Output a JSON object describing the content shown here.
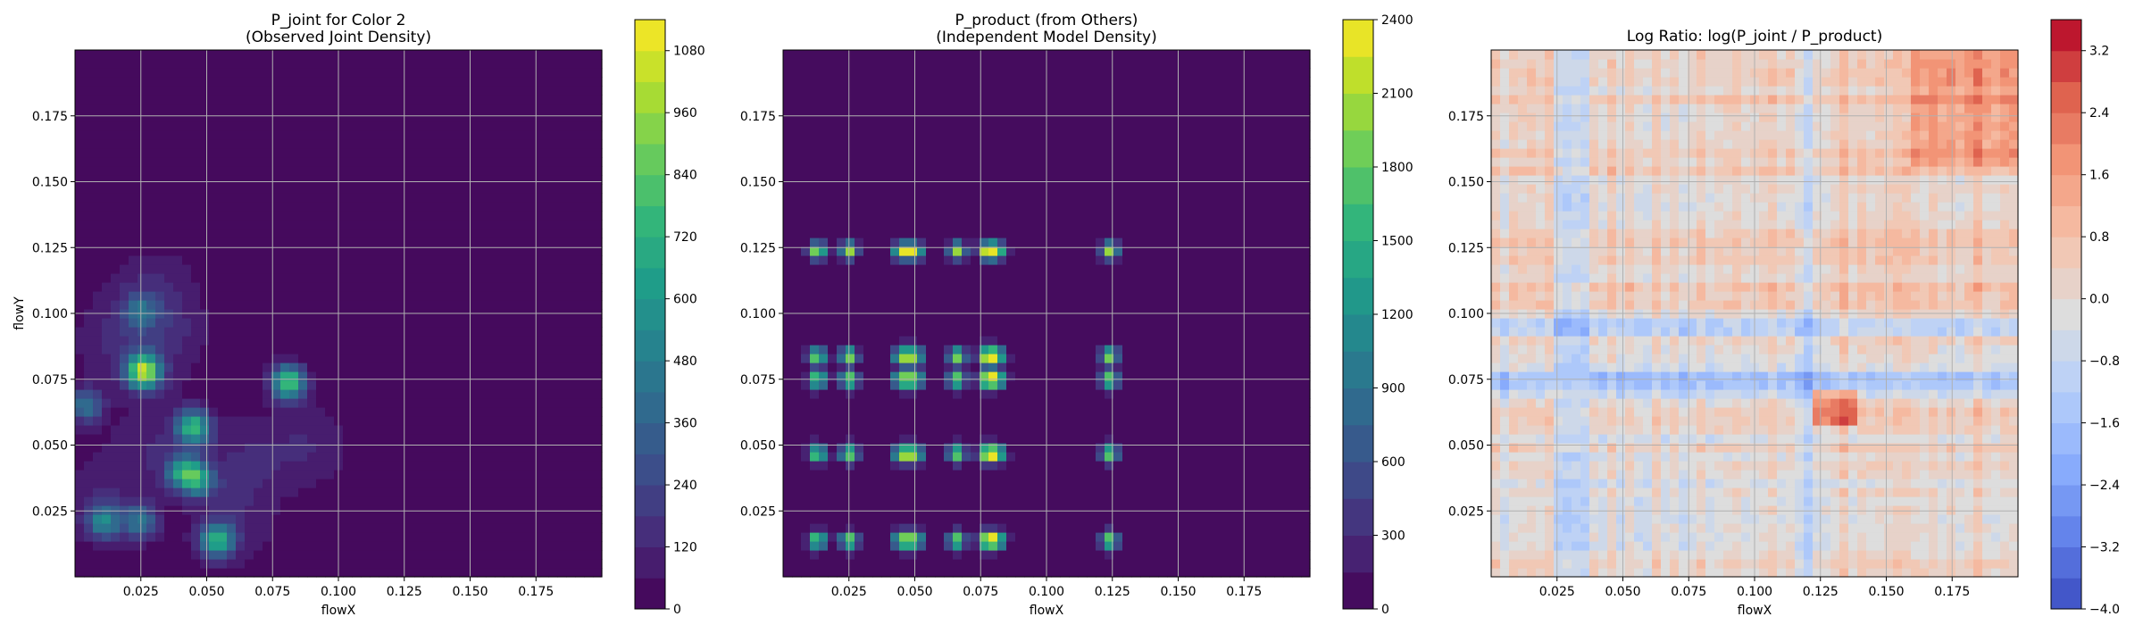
{
  "chart_data": [
    {
      "type": "heatmap",
      "title_lines": [
        "P_joint for Color 2",
        "(Observed Joint Density)"
      ],
      "xlabel": "flowX",
      "ylabel": "flowY",
      "xlim": [
        0.0,
        0.2
      ],
      "ylim": [
        0.0,
        0.2
      ],
      "xticks": [
        "0.025",
        "0.050",
        "0.075",
        "0.100",
        "0.125",
        "0.150",
        "0.175"
      ],
      "yticks": [
        "0.025",
        "0.050",
        "0.075",
        "0.100",
        "0.125",
        "0.150",
        "0.175"
      ],
      "grid": true,
      "colormap": "viridis",
      "colorbar": {
        "min": 0,
        "max": 1140,
        "ticks": [
          "0",
          "120",
          "240",
          "360",
          "480",
          "600",
          "720",
          "840",
          "960",
          "1080"
        ],
        "levels": 19
      },
      "hotspots": [
        {
          "x": 0.026,
          "y": 0.078,
          "density": 1000
        },
        {
          "x": 0.081,
          "y": 0.074,
          "density": 820
        },
        {
          "x": 0.045,
          "y": 0.057,
          "density": 720
        },
        {
          "x": 0.054,
          "y": 0.014,
          "density": 650
        },
        {
          "x": 0.041,
          "y": 0.04,
          "density": 560
        },
        {
          "x": 0.047,
          "y": 0.037,
          "density": 520
        },
        {
          "x": 0.011,
          "y": 0.021,
          "density": 470
        },
        {
          "x": 0.025,
          "y": 0.021,
          "density": 430
        },
        {
          "x": 0.004,
          "y": 0.065,
          "density": 420
        },
        {
          "x": 0.025,
          "y": 0.101,
          "density": 300
        }
      ]
    },
    {
      "type": "heatmap",
      "title_lines": [
        "P_product (from Others)",
        "(Independent Model Density)"
      ],
      "xlabel": "flowX",
      "ylabel": "",
      "xlim": [
        0.0,
        0.2
      ],
      "ylim": [
        0.0,
        0.2
      ],
      "xticks": [
        "0.025",
        "0.050",
        "0.075",
        "0.100",
        "0.125",
        "0.150",
        "0.175"
      ],
      "yticks": [
        "0.025",
        "0.050",
        "0.075",
        "0.100",
        "0.125",
        "0.150",
        "0.175"
      ],
      "grid": true,
      "colormap": "viridis",
      "colorbar": {
        "min": 0,
        "max": 2400,
        "ticks": [
          "0",
          "300",
          "600",
          "900",
          "1200",
          "1500",
          "1800",
          "2100",
          "2400"
        ],
        "levels": 16
      },
      "x_bands": [
        0.013,
        0.025,
        0.045,
        0.05,
        0.066,
        0.077,
        0.081,
        0.124
      ],
      "y_bands": [
        0.014,
        0.047,
        0.075,
        0.084,
        0.124
      ],
      "peak": {
        "x": 0.013,
        "y": 0.014,
        "density": 2200
      }
    },
    {
      "type": "heatmap",
      "title_lines": [
        "Log Ratio: log(P_joint / P_product)"
      ],
      "xlabel": "flowX",
      "ylabel": "",
      "xlim": [
        0.0,
        0.2
      ],
      "ylim": [
        0.0,
        0.2
      ],
      "xticks": [
        "0.025",
        "0.050",
        "0.075",
        "0.100",
        "0.125",
        "0.150",
        "0.175"
      ],
      "yticks": [
        "0.025",
        "0.050",
        "0.075",
        "0.100",
        "0.125",
        "0.150",
        "0.175"
      ],
      "grid": true,
      "colormap": "coolwarm",
      "colorbar": {
        "min": -4.0,
        "max": 3.6,
        "ticks": [
          "−4.0",
          "−3.2",
          "−2.4",
          "−1.6",
          "−0.8",
          "0.0",
          "0.8",
          "1.6",
          "2.4",
          "3.2"
        ],
        "levels": 19
      }
    }
  ]
}
